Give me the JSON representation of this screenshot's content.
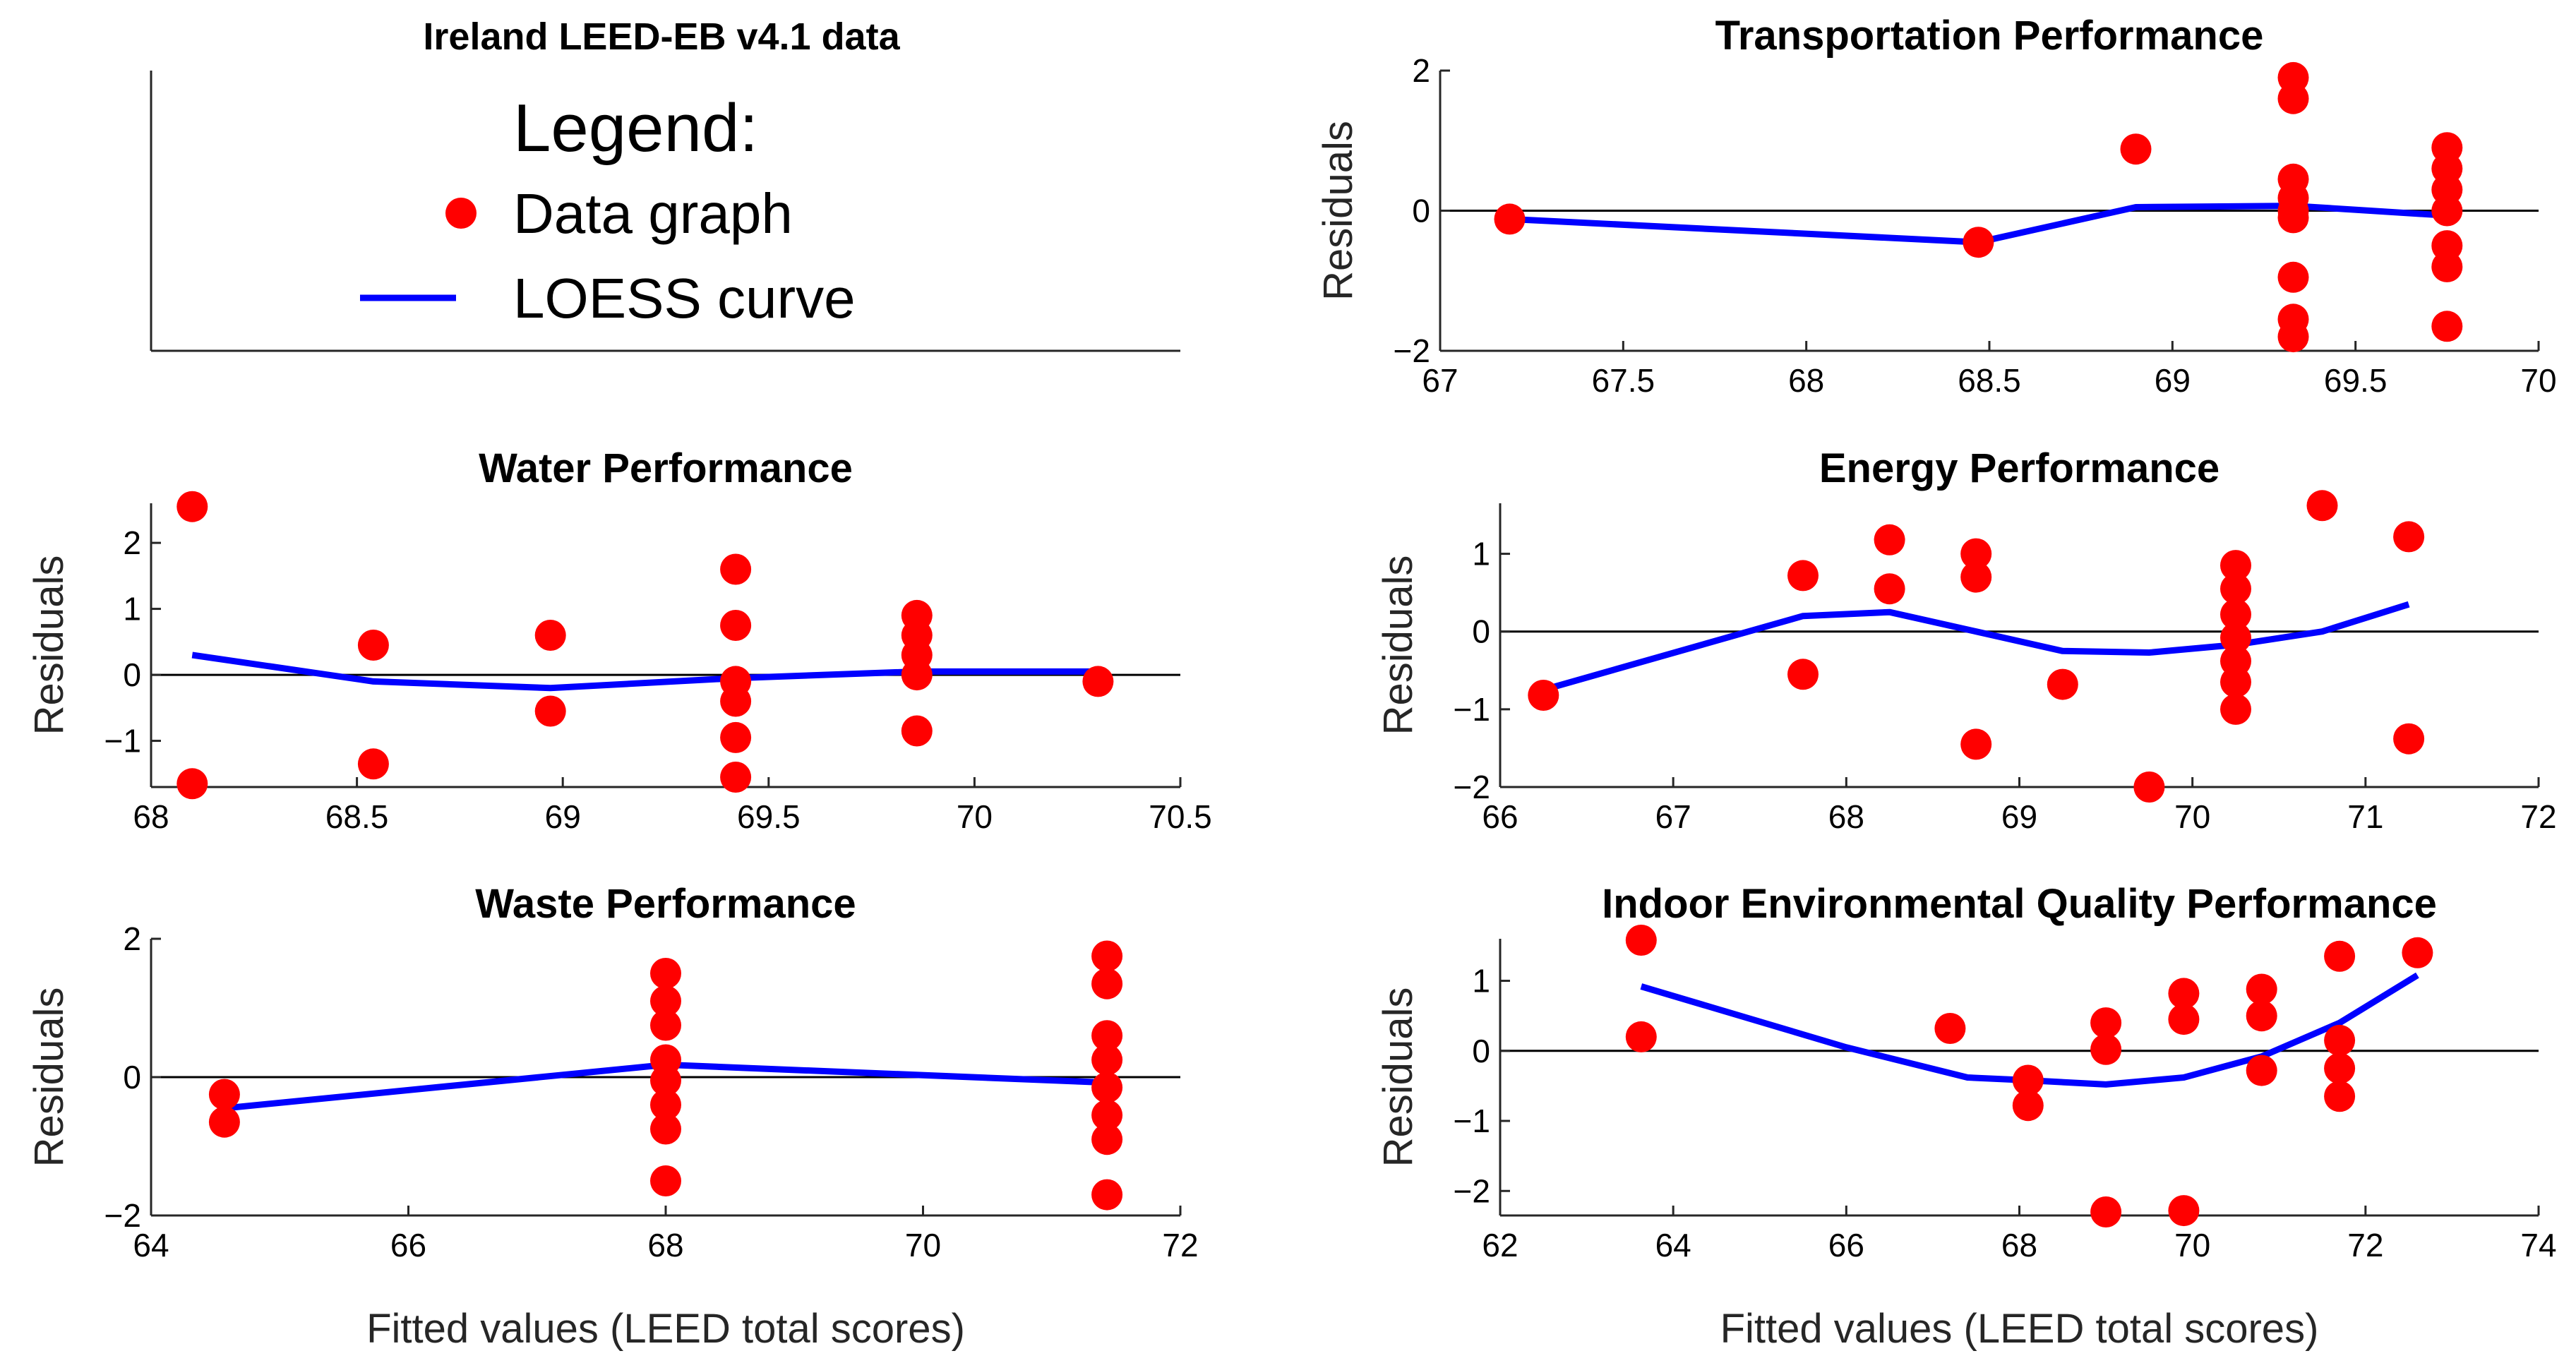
{
  "figure": {
    "marker_color": "#ff0000",
    "curve_color": "#0000ff",
    "axis_color": "#262626",
    "zero_line_color": "#000000"
  },
  "legend_panel": {
    "title": "Ireland LEED-EB v4.1 data",
    "heading": "Legend:",
    "items": [
      {
        "label": "Data graph",
        "kind": "marker"
      },
      {
        "label": "LOESS curve",
        "kind": "line"
      }
    ]
  },
  "chart_data": [
    {
      "id": "transportation",
      "type": "scatter",
      "title": "Transportation Performance",
      "xlabel": "",
      "ylabel": "Residuals",
      "xlim": [
        67,
        70
      ],
      "ylim": [
        -2,
        2
      ],
      "xticks": [
        67,
        67.5,
        68,
        68.5,
        69,
        69.5,
        70
      ],
      "xtick_labels": [
        "67",
        "67.5",
        "68",
        "68.5",
        "69",
        "69.5",
        "70"
      ],
      "yticks": [
        -2,
        0,
        2
      ],
      "ytick_labels": [
        "−2",
        "0",
        "2"
      ],
      "points": [
        [
          67.19,
          -0.12
        ],
        [
          68.47,
          -0.45
        ],
        [
          68.9,
          0.88
        ],
        [
          69.33,
          1.9
        ],
        [
          69.33,
          1.6
        ],
        [
          69.33,
          0.45
        ],
        [
          69.33,
          0.18
        ],
        [
          69.33,
          0.0
        ],
        [
          69.33,
          -0.1
        ],
        [
          69.33,
          -0.95
        ],
        [
          69.33,
          -1.55
        ],
        [
          69.33,
          -1.8
        ],
        [
          69.75,
          0.9
        ],
        [
          69.75,
          0.6
        ],
        [
          69.75,
          0.3
        ],
        [
          69.75,
          0.0
        ],
        [
          69.75,
          -0.5
        ],
        [
          69.75,
          -0.8
        ],
        [
          69.75,
          -1.65
        ]
      ],
      "loess": [
        [
          67.19,
          -0.12
        ],
        [
          68.47,
          -0.45
        ],
        [
          68.9,
          0.05
        ],
        [
          69.33,
          0.07
        ],
        [
          69.75,
          -0.07
        ]
      ]
    },
    {
      "id": "water",
      "type": "scatter",
      "title": "Water Performance",
      "xlabel": "",
      "ylabel": "Residuals",
      "xlim": [
        68,
        70.5
      ],
      "ylim": [
        -1.7,
        2.6
      ],
      "xticks": [
        68,
        68.5,
        69,
        69.5,
        70,
        70.5
      ],
      "xtick_labels": [
        "68",
        "68.5",
        "69",
        "69.5",
        "70",
        "70.5"
      ],
      "yticks": [
        -1,
        0,
        1,
        2
      ],
      "ytick_labels": [
        "−1",
        "0",
        "1",
        "2"
      ],
      "points": [
        [
          68.1,
          2.55
        ],
        [
          68.1,
          -1.65
        ],
        [
          68.54,
          0.45
        ],
        [
          68.54,
          -1.35
        ],
        [
          68.97,
          0.6
        ],
        [
          68.97,
          -0.55
        ],
        [
          69.42,
          1.6
        ],
        [
          69.42,
          0.75
        ],
        [
          69.42,
          -0.1
        ],
        [
          69.42,
          -0.4
        ],
        [
          69.42,
          -0.95
        ],
        [
          69.42,
          -1.55
        ],
        [
          69.86,
          0.9
        ],
        [
          69.86,
          0.6
        ],
        [
          69.86,
          0.3
        ],
        [
          69.86,
          0.0
        ],
        [
          69.86,
          -0.85
        ],
        [
          70.3,
          -0.1
        ]
      ],
      "loess": [
        [
          68.1,
          0.3
        ],
        [
          68.54,
          -0.1
        ],
        [
          68.97,
          -0.2
        ],
        [
          69.42,
          -0.05
        ],
        [
          69.86,
          0.05
        ],
        [
          70.3,
          0.05
        ]
      ]
    },
    {
      "id": "energy",
      "type": "scatter",
      "title": "Energy Performance",
      "xlabel": "",
      "ylabel": "Residuals",
      "xlim": [
        66,
        72
      ],
      "ylim": [
        -2,
        1.65
      ],
      "xticks": [
        66,
        67,
        68,
        69,
        70,
        71,
        72
      ],
      "xtick_labels": [
        "66",
        "67",
        "68",
        "69",
        "70",
        "71",
        "72"
      ],
      "yticks": [
        -2,
        -1,
        0,
        1
      ],
      "ytick_labels": [
        "−2",
        "−1",
        "0",
        "1"
      ],
      "points": [
        [
          66.25,
          -0.82
        ],
        [
          67.75,
          0.72
        ],
        [
          67.75,
          -0.55
        ],
        [
          68.25,
          1.18
        ],
        [
          68.25,
          0.55
        ],
        [
          68.75,
          1.0
        ],
        [
          68.75,
          0.7
        ],
        [
          68.75,
          -1.45
        ],
        [
          69.25,
          -0.68
        ],
        [
          69.75,
          -2.0
        ],
        [
          70.25,
          0.85
        ],
        [
          70.25,
          0.55
        ],
        [
          70.25,
          0.22
        ],
        [
          70.25,
          -0.08
        ],
        [
          70.25,
          -0.38
        ],
        [
          70.25,
          -0.65
        ],
        [
          70.25,
          -1.0
        ],
        [
          70.75,
          1.62
        ],
        [
          71.25,
          1.22
        ],
        [
          71.25,
          -1.38
        ]
      ],
      "loess": [
        [
          66.25,
          -0.75
        ],
        [
          67.75,
          0.2
        ],
        [
          68.25,
          0.25
        ],
        [
          68.75,
          0.0
        ],
        [
          69.25,
          -0.25
        ],
        [
          69.75,
          -0.27
        ],
        [
          70.25,
          -0.17
        ],
        [
          70.75,
          0.0
        ],
        [
          71.25,
          0.35
        ]
      ]
    },
    {
      "id": "waste",
      "type": "scatter",
      "title": "Waste Performance",
      "xlabel": "Fitted values (LEED total scores)",
      "ylabel": "Residuals",
      "xlim": [
        64,
        72
      ],
      "ylim": [
        -2,
        2
      ],
      "xticks": [
        64,
        66,
        68,
        70,
        72
      ],
      "xtick_labels": [
        "64",
        "66",
        "68",
        "70",
        "72"
      ],
      "yticks": [
        -2,
        0,
        2
      ],
      "ytick_labels": [
        "−2",
        "0",
        "2"
      ],
      "points": [
        [
          64.57,
          -0.25
        ],
        [
          64.57,
          -0.65
        ],
        [
          68.0,
          1.5
        ],
        [
          68.0,
          1.1
        ],
        [
          68.0,
          0.75
        ],
        [
          68.0,
          0.25
        ],
        [
          68.0,
          -0.05
        ],
        [
          68.0,
          -0.4
        ],
        [
          68.0,
          -0.75
        ],
        [
          68.0,
          -1.5
        ],
        [
          71.43,
          1.75
        ],
        [
          71.43,
          1.35
        ],
        [
          71.43,
          0.6
        ],
        [
          71.43,
          0.25
        ],
        [
          71.43,
          -0.15
        ],
        [
          71.43,
          -0.55
        ],
        [
          71.43,
          -0.9
        ],
        [
          71.43,
          -1.7
        ]
      ],
      "loess": [
        [
          64.57,
          -0.45
        ],
        [
          68.0,
          0.18
        ],
        [
          71.43,
          -0.08
        ]
      ]
    },
    {
      "id": "ieq",
      "type": "scatter",
      "title": "Indoor Environmental Quality Performance",
      "xlabel": "Fitted values (LEED total scores)",
      "ylabel": "Residuals",
      "xlim": [
        62,
        74
      ],
      "ylim": [
        -2.35,
        1.6
      ],
      "xticks": [
        62,
        64,
        66,
        68,
        70,
        72,
        74
      ],
      "xtick_labels": [
        "62",
        "64",
        "66",
        "68",
        "70",
        "72",
        "74"
      ],
      "yticks": [
        -2,
        -1,
        0,
        1
      ],
      "ytick_labels": [
        "−2",
        "−1",
        "0",
        "1"
      ],
      "points": [
        [
          63.63,
          1.58
        ],
        [
          63.63,
          0.2
        ],
        [
          67.2,
          0.32
        ],
        [
          68.1,
          -0.42
        ],
        [
          68.1,
          -0.78
        ],
        [
          69.0,
          0.4
        ],
        [
          69.0,
          0.02
        ],
        [
          69.0,
          -2.3
        ],
        [
          69.9,
          0.82
        ],
        [
          69.9,
          0.45
        ],
        [
          69.9,
          -2.28
        ],
        [
          70.8,
          0.88
        ],
        [
          70.8,
          0.5
        ],
        [
          70.8,
          -0.28
        ],
        [
          71.7,
          1.35
        ],
        [
          71.7,
          0.15
        ],
        [
          71.7,
          -0.25
        ],
        [
          71.7,
          -0.65
        ],
        [
          72.6,
          1.4
        ]
      ],
      "loess": [
        [
          63.63,
          0.92
        ],
        [
          66.0,
          0.05
        ],
        [
          67.4,
          -0.38
        ],
        [
          68.1,
          -0.42
        ],
        [
          69.0,
          -0.48
        ],
        [
          69.9,
          -0.38
        ],
        [
          70.8,
          -0.08
        ],
        [
          71.7,
          0.4
        ],
        [
          72.6,
          1.08
        ]
      ]
    }
  ]
}
